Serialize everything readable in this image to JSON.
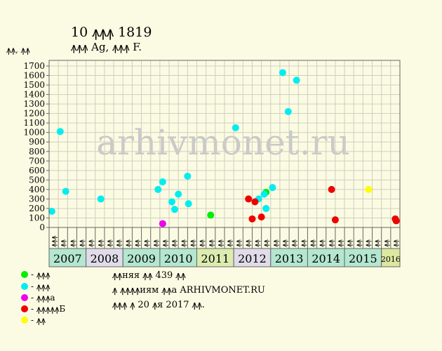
{
  "title": "10 ꙟꙟꙟ 1819",
  "subtitle": "ꙟꙟꙟ Ag, ꙟꙟꙟ F.",
  "watermark": "arhivmonet.ru",
  "legend": [
    {
      "label": "- ꙟꙟꙟ",
      "color": "#00ee00"
    },
    {
      "label": "- ꙟꙟꙟ",
      "color": "#00eeee"
    },
    {
      "label": "- ꙟꙟꙟа",
      "color": "#ee00ee"
    },
    {
      "label": "- ꙟꙟꙟꙟꙟБ",
      "color": "#ee0000"
    },
    {
      "label": "- ꙟꙟ",
      "color": "#ffff00"
    }
  ],
  "footer": [
    "ꙟꙟняя ꙟꙟ 439 ꙟꙟ",
    "ꙟ ꙟꙟꙟꙟиям ꙟꙟа ARHIVMONET.RU",
    "ꙟꙟꙟ ꙟ 20 ꙟя 2017 ꙟꙟ."
  ],
  "chart_data": {
    "type": "scatter",
    "ylabel": "ꙟꙟ, ꙟꙟ",
    "ylim": [
      0,
      1700
    ],
    "yticks": [
      0,
      100,
      200,
      300,
      400,
      500,
      600,
      700,
      800,
      900,
      1000,
      1100,
      1200,
      1300,
      1400,
      1500,
      1600,
      1700
    ],
    "grid": true,
    "years": [
      "2007",
      "2008",
      "2009",
      "2010",
      "2011",
      "2012",
      "2013",
      "2014",
      "2015",
      "2016"
    ],
    "year_colors": [
      "#b4e6d0",
      "#e0dcea",
      "#b4e6d0",
      "#b4e6d0",
      "#dcecb0",
      "#e0dcea",
      "#b4e6d0",
      "#b4e6d0",
      "#b4e6d0",
      "#dce8a0"
    ],
    "period_labels": [
      "ꙟꙟꙟ",
      "ꙟꙟ",
      "ꙟꙟ",
      "ꙟꙟ",
      "ꙟꙟ",
      "ꙟꙟ",
      "ꙟꙟ",
      "ꙟꙟ",
      "ꙟꙟ",
      "ꙟꙟ",
      "ꙟꙟ",
      "ꙟꙟ",
      "ꙟꙟ",
      "ꙟꙟ",
      "ꙟꙟ",
      "ꙟꙟ",
      "ꙟꙟ",
      "ꙟꙟ",
      "ꙟꙟ",
      "ꙟꙟ",
      "ꙟꙟ",
      "ꙟꙟ",
      "ꙟꙟ",
      "ꙟꙟ",
      "ꙟꙟ",
      "ꙟꙟ",
      "ꙟꙟ",
      "ꙟꙟ",
      "ꙟꙟ",
      "ꙟꙟ",
      "ꙟꙟ",
      "ꙟꙟ",
      "ꙟꙟ",
      "ꙟꙟ",
      "ꙟꙟ",
      "ꙟꙟ",
      "ꙟꙟ",
      "ꙟꙟ"
    ],
    "series": [
      {
        "color": "#00ee00",
        "points": [
          [
            17.5,
            130
          ],
          [
            23.5,
            370
          ]
        ]
      },
      {
        "color": "#00eeee",
        "points": [
          [
            0.3,
            170
          ],
          [
            1.2,
            1010
          ],
          [
            1.8,
            380
          ],
          [
            5.6,
            300
          ],
          [
            11.8,
            400
          ],
          [
            12.3,
            480
          ],
          [
            13.3,
            270
          ],
          [
            13.6,
            190
          ],
          [
            14.0,
            350
          ],
          [
            15.0,
            540
          ],
          [
            15.1,
            250
          ],
          [
            20.2,
            1050
          ],
          [
            22.7,
            300
          ],
          [
            23.3,
            350
          ],
          [
            23.5,
            200
          ],
          [
            24.2,
            420
          ],
          [
            25.3,
            1630
          ],
          [
            25.9,
            1220
          ],
          [
            26.8,
            1550
          ]
        ]
      },
      {
        "color": "#ee00ee",
        "points": [
          [
            12.3,
            40
          ]
        ]
      },
      {
        "color": "#ee0000",
        "points": [
          [
            21.6,
            300
          ],
          [
            22.0,
            90
          ],
          [
            22.3,
            270
          ],
          [
            23.0,
            110
          ],
          [
            30.6,
            400
          ],
          [
            31.0,
            80
          ],
          [
            37.5,
            90
          ],
          [
            37.6,
            70
          ]
        ]
      },
      {
        "color": "#ffff00",
        "points": [
          [
            34.6,
            400
          ]
        ]
      }
    ]
  }
}
